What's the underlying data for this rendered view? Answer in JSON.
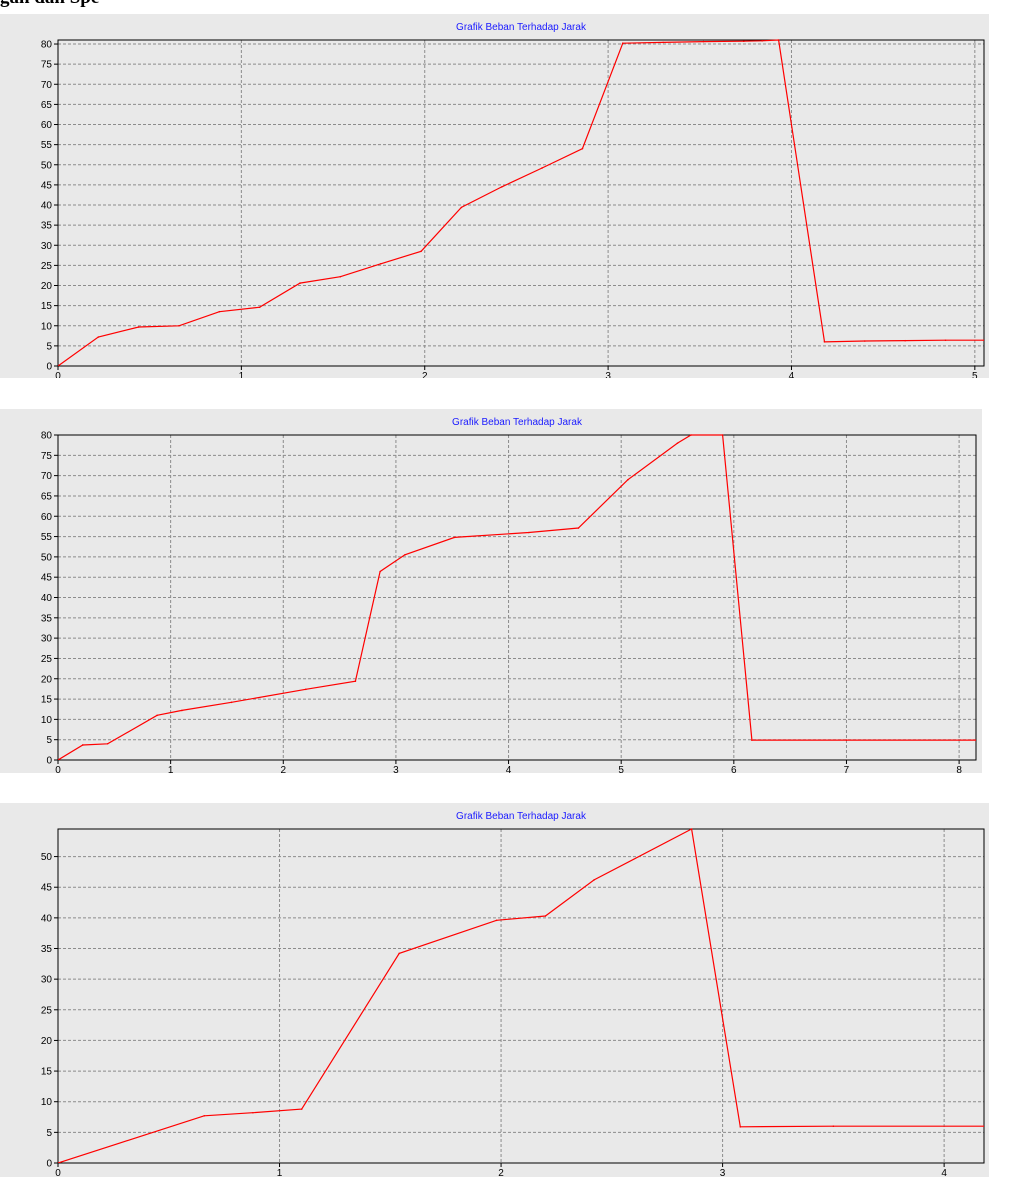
{
  "heading": "gan dan Spe",
  "chart_data": [
    {
      "type": "line",
      "title": "Grafik Beban Terhadap Jarak",
      "xlim": [
        0,
        5.05
      ],
      "ylim": [
        0,
        81
      ],
      "x_ticks": [
        0,
        1,
        2,
        3,
        4,
        5
      ],
      "y_ticks": [
        0,
        5,
        10,
        15,
        20,
        25,
        30,
        35,
        40,
        45,
        50,
        55,
        60,
        65,
        70,
        75,
        80
      ],
      "grid": true,
      "line_color": "#ff0000",
      "series": [
        {
          "x": [
            0,
            0.22,
            0.44,
            0.66,
            0.88,
            1.1,
            1.32,
            1.54,
            1.76,
            1.98,
            2.2,
            2.42,
            2.64,
            2.86,
            3.08,
            3.3,
            3.52,
            3.74,
            3.84,
            3.93,
            4.18,
            4.4,
            4.62,
            4.84,
            5.05
          ],
          "y": [
            0,
            7.2,
            9.7,
            10,
            13.5,
            14.6,
            20.6,
            22.2,
            25.4,
            28.5,
            39.4,
            44.5,
            49.2,
            54,
            80.2,
            80.4,
            80.6,
            80.7,
            80.8,
            81,
            6,
            6.2,
            6.3,
            6.4,
            6.4
          ]
        }
      ]
    },
    {
      "type": "line",
      "title": "Grafik Beban Terhadap Jarak",
      "xlim": [
        0,
        8.15
      ],
      "ylim": [
        0,
        80
      ],
      "x_ticks": [
        0,
        1,
        2,
        3,
        4,
        5,
        6,
        7,
        8
      ],
      "y_ticks": [
        0,
        5,
        10,
        15,
        20,
        25,
        30,
        35,
        40,
        45,
        50,
        55,
        60,
        65,
        70,
        75,
        80
      ],
      "grid": true,
      "line_color": "#ff0000",
      "series": [
        {
          "x": [
            0,
            0.22,
            0.44,
            0.88,
            1.1,
            1.54,
            2.2,
            2.64,
            2.86,
            3.08,
            3.52,
            4.18,
            4.62,
            5.06,
            5.5,
            5.62,
            5.9,
            6.16,
            7,
            8.15
          ],
          "y": [
            0,
            3.7,
            4,
            11,
            12.2,
            14.2,
            17.4,
            19.4,
            46.4,
            50.5,
            54.8,
            56,
            57.1,
            69,
            78,
            80,
            80,
            4.9,
            4.9,
            4.9
          ]
        }
      ]
    },
    {
      "type": "line",
      "title": "Grafik Beban Terhadap Jarak",
      "xlim": [
        0,
        4.18
      ],
      "ylim": [
        0,
        54.5
      ],
      "x_ticks": [
        0,
        1,
        2,
        3,
        4
      ],
      "y_ticks": [
        0,
        5,
        10,
        15,
        20,
        25,
        30,
        35,
        40,
        45,
        50
      ],
      "grid": true,
      "line_color": "#ff0000",
      "series": [
        {
          "x": [
            0,
            0.66,
            0.88,
            1.1,
            1.54,
            1.98,
            2.2,
            2.42,
            2.86,
            3.08,
            3.5,
            4.18
          ],
          "y": [
            0,
            7.7,
            8.2,
            8.8,
            34.2,
            39.6,
            40.3,
            46.2,
            54.5,
            5.9,
            6,
            6
          ]
        }
      ]
    }
  ]
}
